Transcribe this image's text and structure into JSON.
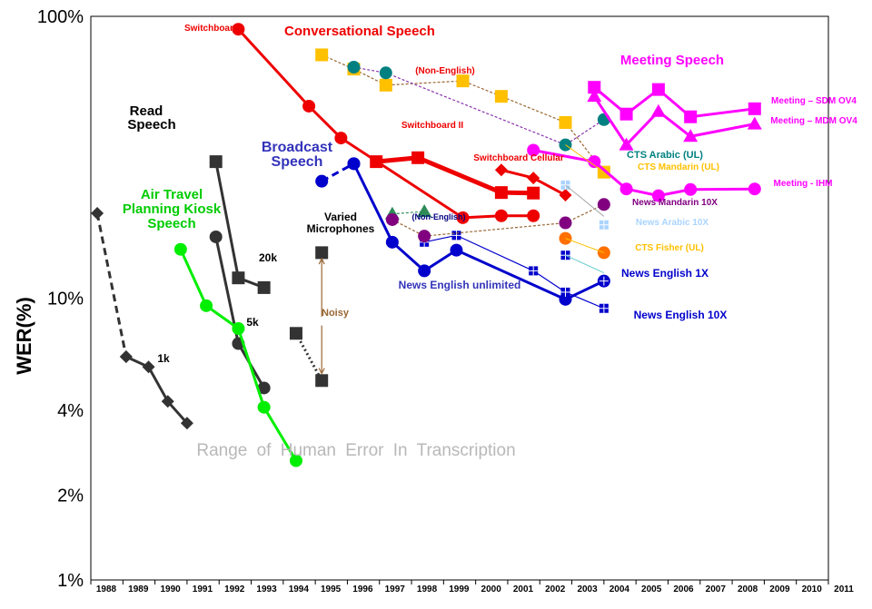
{
  "chart_data": {
    "type": "line",
    "title": "",
    "ylabel": "WER(%)",
    "xlabel": "",
    "yscale": "log",
    "ylim": [
      1,
      100
    ],
    "xlim": [
      1988,
      2011
    ],
    "y_ticks": [
      {
        "value": 1,
        "label": "1%"
      },
      {
        "value": 2,
        "label": "2%"
      },
      {
        "value": 4,
        "label": "4%"
      },
      {
        "value": 10,
        "label": "10%"
      },
      {
        "value": 100,
        "label": "100%"
      }
    ],
    "x_ticks": [
      "1988",
      "1989",
      "1990",
      "1991",
      "1992",
      "1993",
      "1994",
      "1995",
      "1996",
      "1997",
      "1998",
      "1999",
      "2000",
      "2001",
      "2002",
      "2003",
      "2004",
      "2005",
      "2006",
      "2007",
      "2008",
      "2009",
      "2010",
      "2011"
    ],
    "human_range": {
      "low": 2,
      "high": 4,
      "label": "Range of Human Error In Transcription"
    },
    "series": [
      {
        "name": "Read Speech 1k",
        "color": "#333333",
        "marker": "diamond",
        "style": "solid",
        "points": [
          [
            1989.1,
            6.2
          ],
          [
            1989.8,
            5.7
          ],
          [
            1990.4,
            4.3
          ],
          [
            1991.0,
            3.6
          ]
        ]
      },
      {
        "name": "Read Speech 1k early",
        "color": "#333333",
        "marker": "diamond",
        "style": "dashed",
        "points": [
          [
            1988.2,
            20
          ],
          [
            1989.1,
            6.2
          ]
        ]
      },
      {
        "name": "Read Speech 5k",
        "color": "#333333",
        "marker": "circle",
        "style": "solid",
        "points": [
          [
            1991.9,
            16.5
          ],
          [
            1992.6,
            6.9
          ],
          [
            1993.4,
            4.8
          ]
        ]
      },
      {
        "name": "Read Speech 20k",
        "color": "#333333",
        "marker": "square",
        "style": "solid",
        "points": [
          [
            1991.9,
            30.5
          ],
          [
            1992.6,
            11.8
          ],
          [
            1993.4,
            10.9
          ]
        ]
      },
      {
        "name": "Air Travel Planning Kiosk Speech",
        "color": "#00ee00",
        "marker": "circle",
        "style": "solid",
        "points": [
          [
            1990.8,
            14.9
          ],
          [
            1991.6,
            9.4
          ],
          [
            1992.6,
            7.8
          ],
          [
            1993.4,
            4.1
          ],
          [
            1994.4,
            2.65
          ]
        ]
      },
      {
        "name": "Noisy",
        "color": "#333333",
        "marker": "square",
        "style": "dotted",
        "points": [
          [
            1994.4,
            7.5
          ],
          [
            1995.2,
            5.1
          ]
        ]
      },
      {
        "name": "Varied Microphones",
        "color": "#333333",
        "marker": "square",
        "style": "none",
        "points": [
          [
            1995.2,
            14.5
          ]
        ]
      },
      {
        "name": "Conversational Speech (Switchboard)",
        "color": "#ee0000",
        "marker": "circle",
        "style": "solid",
        "points": [
          [
            1992.6,
            90
          ],
          [
            1994.8,
            48
          ],
          [
            1995.8,
            37
          ],
          [
            1999.6,
            19.3
          ],
          [
            2000.8,
            19.6
          ],
          [
            2001.8,
            19.6
          ]
        ]
      },
      {
        "name": "Switchboard II",
        "color": "#ee0000",
        "marker": "square",
        "style": "thick",
        "points": [
          [
            1996.9,
            30.5
          ],
          [
            1998.2,
            31.5
          ],
          [
            2000.8,
            23.7
          ],
          [
            2001.8,
            23.6
          ]
        ]
      },
      {
        "name": "Switchboard Cellular",
        "color": "#ee0000",
        "marker": "diamond",
        "style": "solid",
        "points": [
          [
            2000.8,
            28.5
          ],
          [
            2001.8,
            26.7
          ],
          [
            2002.8,
            23.2
          ]
        ]
      },
      {
        "name": "Non-English conversational",
        "color": "#ffc000",
        "marker": "square",
        "style": "dotted-brown",
        "points": [
          [
            1995.2,
            73
          ],
          [
            1996.2,
            65
          ],
          [
            1997.2,
            57
          ],
          [
            1999.6,
            59
          ],
          [
            2000.8,
            52
          ],
          [
            2002.8,
            42
          ],
          [
            2004.0,
            28
          ]
        ]
      },
      {
        "name": "CTS Arabic (UL)",
        "color": "#008080",
        "marker": "circle",
        "style": "dotted-purple",
        "points": [
          [
            1996.2,
            66
          ],
          [
            1997.2,
            63
          ],
          [
            2002.8,
            35
          ],
          [
            2004.0,
            43
          ]
        ]
      },
      {
        "name": "Meeting - SDM OV4",
        "color": "#ff00ff",
        "marker": "square",
        "style": "solid",
        "points": [
          [
            2003.7,
            56
          ],
          [
            2004.7,
            45
          ],
          [
            2005.7,
            55
          ],
          [
            2006.7,
            44
          ],
          [
            2008.7,
            47
          ]
        ]
      },
      {
        "name": "Meeting - MDM OV4",
        "color": "#ff00ff",
        "marker": "triangle",
        "style": "solid",
        "points": [
          [
            2003.7,
            52
          ],
          [
            2004.7,
            35
          ],
          [
            2005.7,
            46
          ],
          [
            2006.7,
            37.5
          ],
          [
            2008.7,
            41.5
          ]
        ]
      },
      {
        "name": "Meeting - IHM",
        "color": "#ff00ff",
        "marker": "circle",
        "style": "solid",
        "points": [
          [
            2001.8,
            33.5
          ],
          [
            2003.7,
            30.5
          ],
          [
            2004.7,
            24.4
          ],
          [
            2005.7,
            23.1
          ],
          [
            2006.7,
            24.3
          ],
          [
            2008.7,
            24.4
          ]
        ]
      },
      {
        "name": "Broadcast Speech (News English unlimited)",
        "color": "#0000cc",
        "marker": "circle",
        "style": "solid",
        "points": [
          [
            1996.2,
            30
          ],
          [
            1997.4,
            15.8
          ],
          [
            1998.4,
            12.5
          ],
          [
            1999.4,
            14.8
          ],
          [
            2002.8,
            9.9
          ],
          [
            2004.0,
            11.5
          ]
        ]
      },
      {
        "name": "Broadcast Speech early",
        "color": "#0000cc",
        "marker": "circle",
        "style": "dashed",
        "points": [
          [
            1995.2,
            26
          ],
          [
            1996.2,
            30
          ]
        ]
      },
      {
        "name": "News English 1X",
        "color": "#0000cc",
        "marker": "sqgrid",
        "style": "thin-blue",
        "points": [
          [
            1998.4,
            15.8
          ],
          [
            1999.4,
            16.7
          ],
          [
            2001.8,
            12.5
          ],
          [
            2002.8,
            10.5
          ],
          [
            2004.0,
            9.2
          ]
        ]
      },
      {
        "name": "Varied Microphones (Non-English)",
        "color": "#2e8b57",
        "marker": "triangle",
        "style": "dotted-green",
        "points": [
          [
            1997.4,
            19.9
          ],
          [
            1998.4,
            20.3
          ]
        ]
      },
      {
        "name": "News Mandarin 10X",
        "color": "#800080",
        "marker": "circle",
        "style": "dotted-brown",
        "points": [
          [
            1997.4,
            19
          ],
          [
            1998.4,
            16.6
          ],
          [
            2002.8,
            18.5
          ],
          [
            2004.0,
            21.5
          ]
        ]
      },
      {
        "name": "News Arabic 10X",
        "color": "#aad4ff",
        "marker": "sqgrid",
        "style": "none",
        "points": [
          [
            2002.8,
            25.2
          ],
          [
            2004.0,
            18.2
          ]
        ]
      },
      {
        "name": "CTS Fisher (UL)",
        "color": "#ff7000",
        "marker": "circle",
        "style": "none",
        "points": [
          [
            2002.8,
            16.3
          ],
          [
            2004.0,
            14.5
          ]
        ]
      },
      {
        "name": "News English 10X",
        "color": "#0000cc",
        "marker": "sqgrid",
        "style": "none",
        "points": [
          [
            2002.8,
            14.2
          ],
          [
            2004.0,
            11.5
          ]
        ]
      }
    ],
    "annotations": [
      {
        "text": "Read",
        "color": "#000000"
      },
      {
        "text": "Speech",
        "color": "#000000"
      },
      {
        "text": "1k",
        "color": "#000000"
      },
      {
        "text": "5k",
        "color": "#000000"
      },
      {
        "text": "20k",
        "color": "#000000"
      },
      {
        "text": "Air Travel",
        "color": "#00cc00"
      },
      {
        "text": "Planning Kiosk",
        "color": "#00cc00"
      },
      {
        "text": "Speech",
        "color": "#00cc00"
      },
      {
        "text": "Switchboard",
        "color": "#ee0000"
      },
      {
        "text": "Conversational Speech",
        "color": "#ee0000"
      },
      {
        "text": "(Non-English)",
        "color": "#ee0000"
      },
      {
        "text": "Switchboard II",
        "color": "#ee0000"
      },
      {
        "text": "Switchboard Cellular",
        "color": "#ee0000"
      },
      {
        "text": "Broadcast",
        "color": "#3333bb"
      },
      {
        "text": "Speech",
        "color": "#3333bb"
      },
      {
        "text": "Varied",
        "color": "#000000"
      },
      {
        "text": "Microphones",
        "color": "#000000"
      },
      {
        "text": "(Non-English)",
        "color": "#000080"
      },
      {
        "text": "Noisy",
        "color": "#996633"
      },
      {
        "text": "News English unlimited",
        "color": "#3333bb"
      },
      {
        "text": "Meeting Speech",
        "color": "#ff00ff"
      },
      {
        "text": "Meeting – SDM OV4",
        "color": "#ff00ff"
      },
      {
        "text": "Meeting – MDM OV4",
        "color": "#ff00ff"
      },
      {
        "text": "Meeting - IHM",
        "color": "#ff00ff"
      },
      {
        "text": "CTS Arabic (UL)",
        "color": "#008080"
      },
      {
        "text": "CTS Mandarin (UL)",
        "color": "#ffc000"
      },
      {
        "text": "News Mandarin 10X",
        "color": "#800080"
      },
      {
        "text": "News Arabic 10X",
        "color": "#aad4ff"
      },
      {
        "text": "CTS Fisher (UL)",
        "color": "#ffc000"
      },
      {
        "text": "News English 1X",
        "color": "#0000cc"
      },
      {
        "text": "News English 10X",
        "color": "#0000cc"
      }
    ]
  }
}
